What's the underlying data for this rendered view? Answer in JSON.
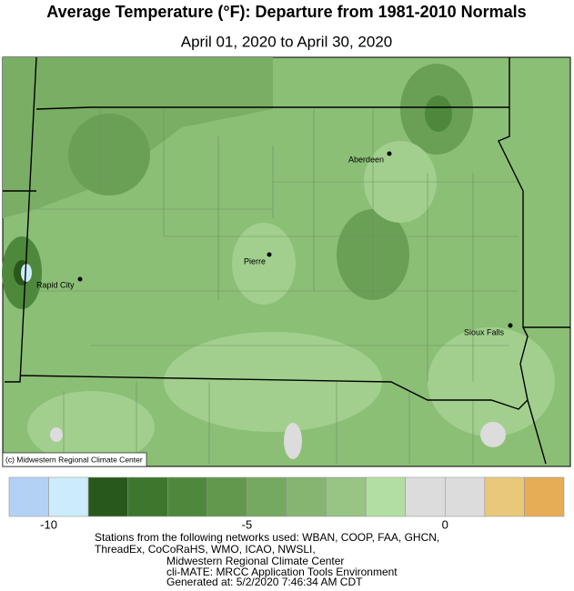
{
  "header": {
    "title": "Average Temperature (°F): Departure from 1981-2010 Normals",
    "subtitle": "April 01, 2020 to April 30, 2020"
  },
  "cities": [
    {
      "label": "Aberdeen"
    },
    {
      "label": "Pierre"
    },
    {
      "label": "Rapid City"
    },
    {
      "label": "Sioux Falls"
    }
  ],
  "credit": "(c) Midwestern Regional Climate Center",
  "legend": {
    "colors": [
      "#b3d1f5",
      "#ccecfb",
      "#29581b",
      "#3c772d",
      "#4e883c",
      "#62984e",
      "#75a860",
      "#85b571",
      "#98c484",
      "#b3dea1",
      "#dcdcdc",
      "#dcdcdc",
      "#e8c87a",
      "#e6ad56"
    ],
    "lim": [
      -11,
      3
    ],
    "ticks": [
      -10,
      -5,
      0
    ]
  },
  "footer": [
    "Stations from the following networks used: WBAN, COOP, FAA, GHCN,",
    "ThreadEx, CoCoRaHS, WMO, ICAO, NWSLI,",
    "Midwestern Regional Climate Center",
    "cli-MATE: MRCC Application Tools Environment",
    "Generated at: 5/2/2020 7:46:34 AM CDT"
  ]
}
